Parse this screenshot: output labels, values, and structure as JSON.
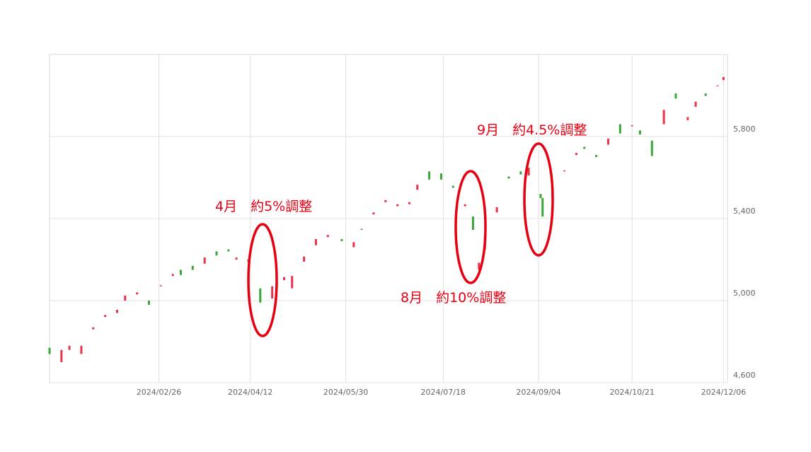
{
  "chart_data": {
    "type": "candlestick",
    "x": [
      "2024/01/02",
      "2024/01/08",
      "2024/01/12",
      "2024/01/18",
      "2024/01/24",
      "2024/01/30",
      "2024/02/05",
      "2024/02/09",
      "2024/02/15",
      "2024/02/21",
      "2024/02/27",
      "2024/03/04",
      "2024/03/08",
      "2024/03/14",
      "2024/03/20",
      "2024/03/26",
      "2024/04/01",
      "2024/04/05",
      "2024/04/11",
      "2024/04/17",
      "2024/04/23",
      "2024/04/29",
      "2024/05/03",
      "2024/05/09",
      "2024/05/15",
      "2024/05/21",
      "2024/05/28",
      "2024/06/03",
      "2024/06/07",
      "2024/06/13",
      "2024/06/19",
      "2024/06/25",
      "2024/07/01",
      "2024/07/05",
      "2024/07/11",
      "2024/07/17",
      "2024/07/23",
      "2024/07/29",
      "2024/08/02",
      "2024/08/05",
      "2024/08/08",
      "2024/08/14",
      "2024/08/20",
      "2024/08/26",
      "2024/08/30",
      "2024/09/05",
      "2024/09/06",
      "2024/09/11",
      "2024/09/17",
      "2024/09/23",
      "2024/09/27",
      "2024/10/03",
      "2024/10/09",
      "2024/10/15",
      "2024/10/21",
      "2024/10/25",
      "2024/10/31",
      "2024/11/06",
      "2024/11/12",
      "2024/11/18",
      "2024/11/22",
      "2024/11/27",
      "2024/12/03",
      "2024/12/06"
    ],
    "open": [
      4770,
      4700,
      4760,
      4740,
      4860,
      4920,
      4940,
      5000,
      5030,
      5000,
      5070,
      5120,
      5150,
      5170,
      5180,
      5240,
      5250,
      5200,
      5190,
      5060,
      5010,
      5100,
      5060,
      5190,
      5270,
      5310,
      5300,
      5260,
      5350,
      5420,
      5480,
      5460,
      5470,
      5540,
      5630,
      5620,
      5560,
      5460,
      5410,
      5150,
      5250,
      5430,
      5605,
      5630,
      5610,
      5520,
      5500,
      5500,
      5630,
      5710,
      5750,
      5710,
      5760,
      5860,
      5850,
      5830,
      5780,
      5860,
      6010,
      5880,
      5945,
      6010,
      6045,
      6075
    ],
    "close": [
      4740,
      4760,
      4780,
      4780,
      4870,
      4930,
      4955,
      5025,
      5040,
      4980,
      5075,
      5130,
      5125,
      5150,
      5210,
      5220,
      5240,
      5210,
      5200,
      4990,
      5070,
      5115,
      5120,
      5215,
      5300,
      5320,
      5290,
      5285,
      5345,
      5430,
      5490,
      5470,
      5480,
      5565,
      5590,
      5590,
      5550,
      5470,
      5345,
      5185,
      5320,
      5455,
      5595,
      5615,
      5648,
      5500,
      5410,
      5555,
      5635,
      5720,
      5740,
      5700,
      5790,
      5815,
      5855,
      5810,
      5705,
      5930,
      5985,
      5895,
      5970,
      5998,
      6049,
      6090
    ],
    "up_color": "#e8334a",
    "down_color": "#3aa53a",
    "xlim": [
      "2024/01/02",
      "2024/12/08"
    ],
    "xticks": [
      "2024/02/26",
      "2024/04/12",
      "2024/05/30",
      "2024/07/18",
      "2024/09/04",
      "2024/10/21",
      "2024/12/06"
    ],
    "ylim": [
      4600,
      6200
    ],
    "yticks": [
      {
        "value": 4600,
        "label": "4,600"
      },
      {
        "value": 5000,
        "label": "5,000"
      },
      {
        "value": 5400,
        "label": "5,400"
      },
      {
        "value": 5800,
        "label": "5,800"
      }
    ],
    "grid": true,
    "annotations": [
      "4月　約5%調整",
      "8月　約10%調整",
      "9月　約4.5%調整"
    ]
  }
}
